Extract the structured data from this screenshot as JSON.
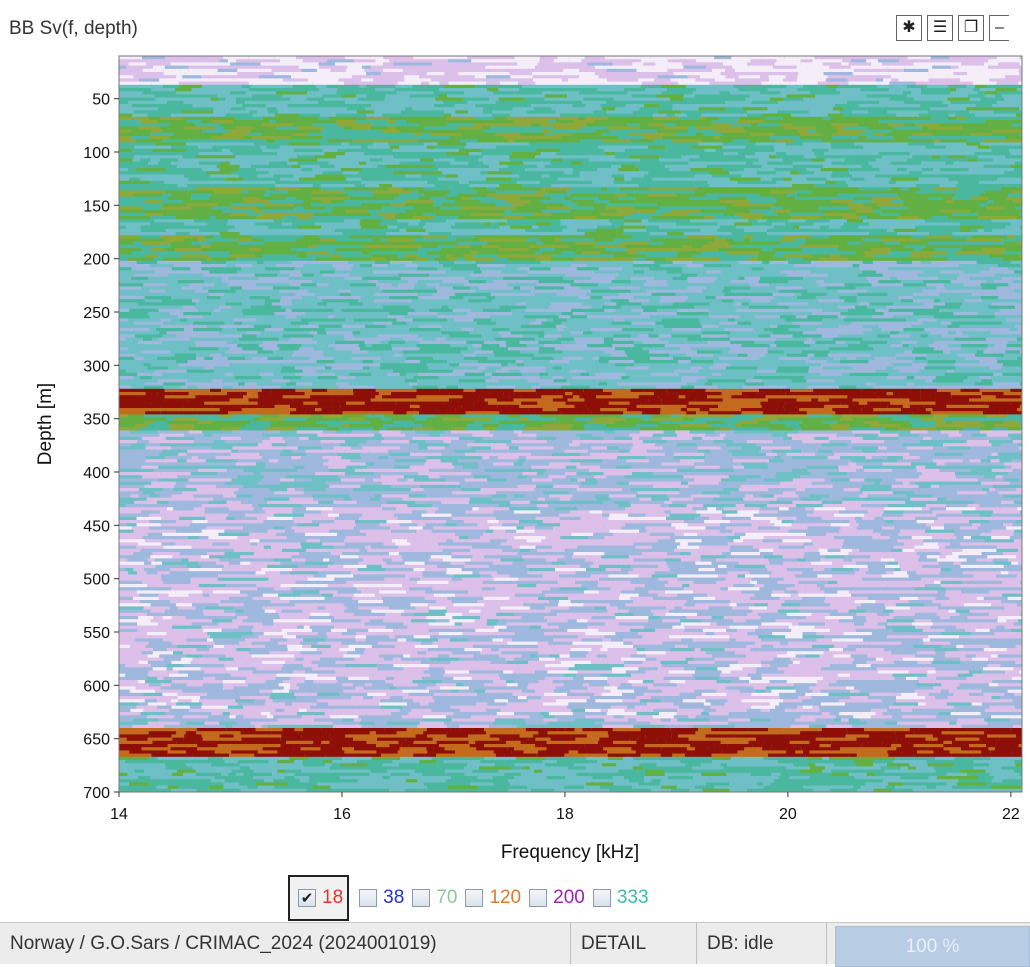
{
  "window": {
    "title": "BB Sv(f, depth)",
    "buttons": [
      {
        "icon": "gear-icon",
        "glyph": "✱"
      },
      {
        "icon": "menu-icon",
        "glyph": "☰"
      },
      {
        "icon": "restore-icon",
        "glyph": "❐"
      },
      {
        "icon": "minimize-icon",
        "glyph": "‒"
      }
    ]
  },
  "chart_data": {
    "type": "heatmap",
    "xlabel": "Frequency [kHz]",
    "ylabel": "Depth [m]",
    "xlim": [
      14,
      22.1
    ],
    "ylim": [
      700,
      10
    ],
    "x_ticks": [
      "14",
      "16",
      "18",
      "20",
      "22"
    ],
    "y_ticks": [
      "50",
      "100",
      "150",
      "200",
      "250",
      "300",
      "350",
      "400",
      "450",
      "500",
      "550",
      "600",
      "650",
      "700"
    ],
    "palette": [
      "#f5eef8",
      "#ddc0ea",
      "#9fb8dd",
      "#6fc0c6",
      "#4ab89e",
      "#62b043",
      "#8fa83a",
      "#c46a1c",
      "#8e0e08"
    ],
    "depth_bands": [
      {
        "from": 10,
        "to": 37,
        "level": "very low"
      },
      {
        "from": 37,
        "to": 65,
        "level": "medium"
      },
      {
        "from": 65,
        "to": 90,
        "level": "high"
      },
      {
        "from": 90,
        "to": 130,
        "level": "medium"
      },
      {
        "from": 130,
        "to": 160,
        "level": "high"
      },
      {
        "from": 160,
        "to": 175,
        "level": "medium"
      },
      {
        "from": 175,
        "to": 200,
        "level": "high"
      },
      {
        "from": 200,
        "to": 320,
        "level": "medium-low"
      },
      {
        "from": 320,
        "to": 345,
        "level": "very high"
      },
      {
        "from": 345,
        "to": 360,
        "level": "high"
      },
      {
        "from": 360,
        "to": 640,
        "level": "low"
      },
      {
        "from": 640,
        "to": 665,
        "level": "very high"
      },
      {
        "from": 665,
        "to": 700,
        "level": "medium"
      }
    ]
  },
  "frequency_selector": [
    {
      "label": "18",
      "checked": true,
      "color": "#e8312a"
    },
    {
      "label": "38",
      "checked": false,
      "color": "#2233cc"
    },
    {
      "label": "70",
      "checked": false,
      "color": "#8fc79a"
    },
    {
      "label": "120",
      "checked": false,
      "color": "#e07a2c"
    },
    {
      "label": "200",
      "checked": false,
      "color": "#a31fb8"
    },
    {
      "label": "333",
      "checked": false,
      "color": "#3bbbb0"
    }
  ],
  "status_bar": {
    "survey": "Norway / G.O.Sars / CRIMAC_2024 (2024001019)",
    "mode": "DETAIL",
    "db_status": "DB: idle",
    "progress_label": "100 %",
    "progress": 1.0
  }
}
